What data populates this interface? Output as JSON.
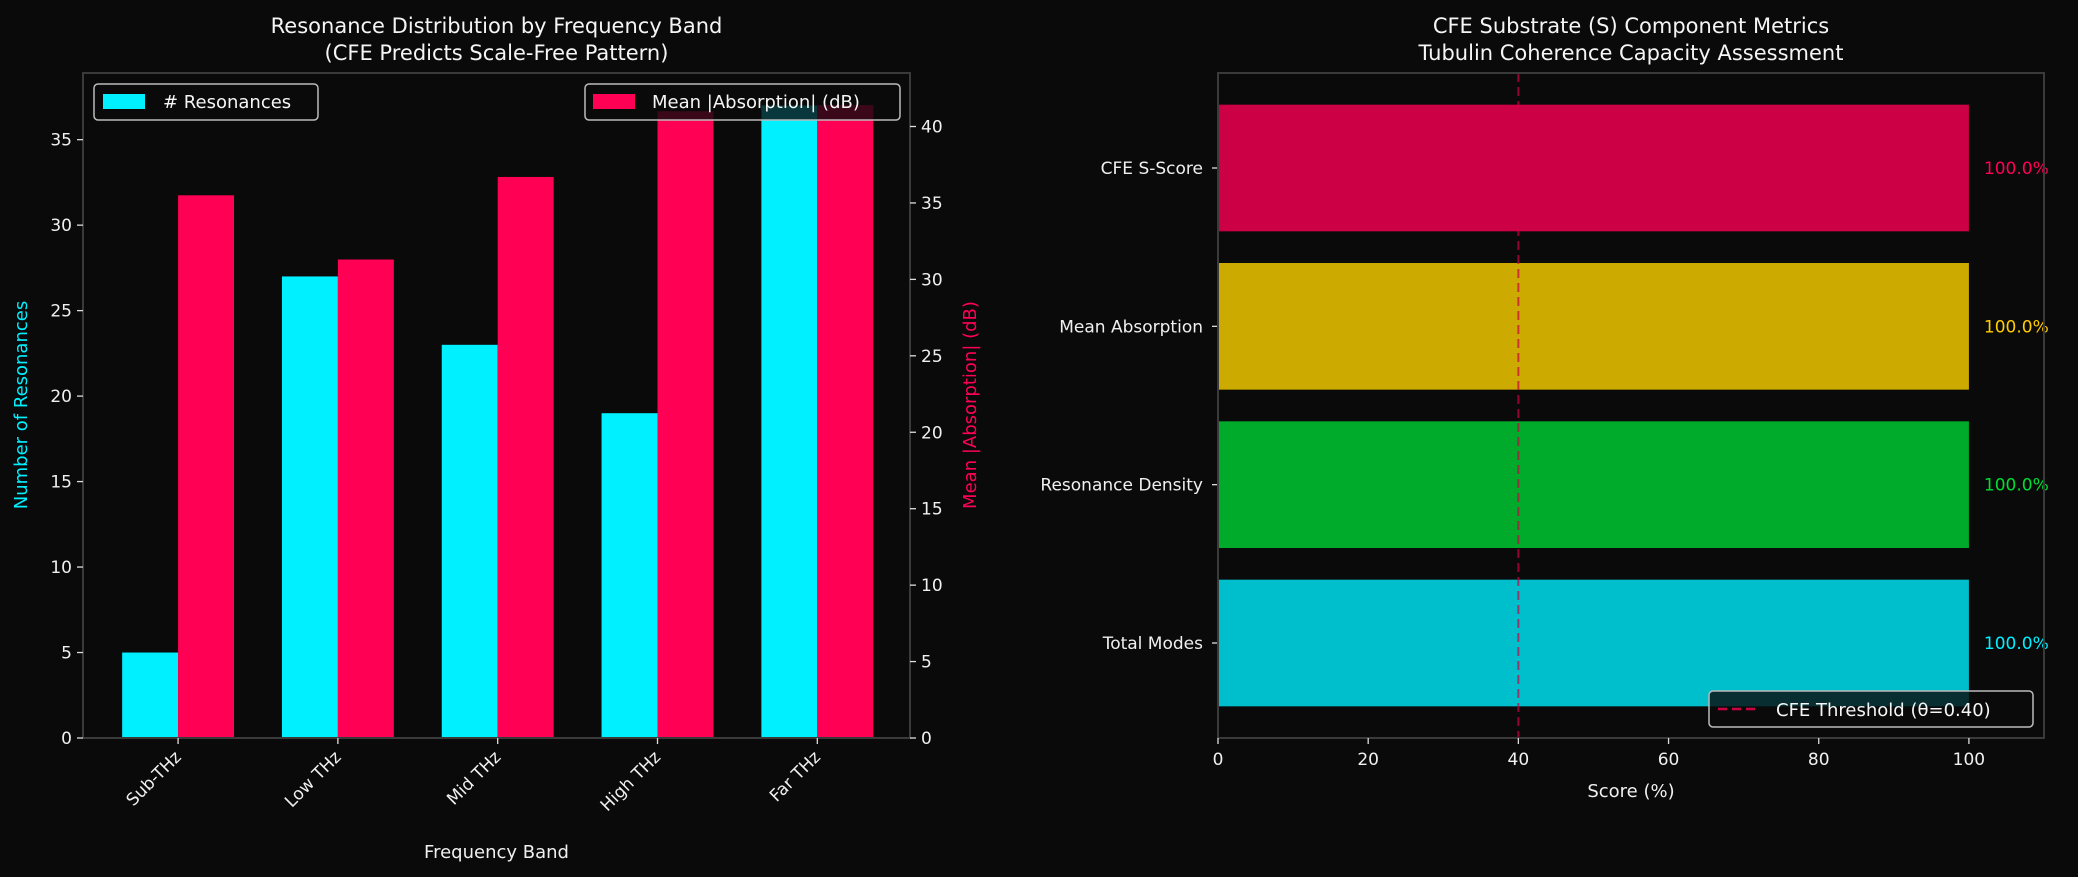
{
  "background": "#0a0a0a",
  "chart_data": [
    {
      "type": "bar",
      "title": "Resonance Distribution by Frequency Band",
      "subtitle": "(CFE Predicts Scale-Free Pattern)",
      "xlabel": "Frequency Band",
      "ylabel": "Number of Resonances",
      "y2label": "Mean |Absorption| (dB)",
      "categories": [
        "Sub-THz",
        "Low THz",
        "Mid THz",
        "High THz",
        "Far THz"
      ],
      "series": [
        {
          "name": "# Resonances",
          "axis": "left",
          "values": [
            5,
            27,
            23,
            19,
            37
          ],
          "color": "#00f0ff"
        },
        {
          "name": "Mean |Absorption| (dB)",
          "axis": "right",
          "values": [
            35.5,
            31.3,
            36.7,
            41.0,
            41.4
          ],
          "color": "#ff0055"
        }
      ],
      "ylim": [
        0,
        38.9
      ],
      "y2lim": [
        0,
        43.5
      ],
      "yticks": [
        0,
        5,
        10,
        15,
        20,
        25,
        30,
        35
      ],
      "y2ticks": [
        0,
        5,
        10,
        15,
        20,
        25,
        30,
        35,
        40
      ],
      "ylabel_color": "#00f0ff",
      "y2label_color": "#ff0055",
      "legend": [
        "upper-left",
        "upper-right"
      ],
      "grid": false
    },
    {
      "type": "bar",
      "orientation": "horizontal",
      "title": "CFE Substrate (S) Component Metrics",
      "subtitle": "Tubulin Coherence Capacity Assessment",
      "xlabel": "Score (%)",
      "categories": [
        "Total Modes",
        "Resonance Density",
        "Mean Absorption",
        "CFE S-Score"
      ],
      "values": [
        100,
        100,
        100,
        100
      ],
      "value_labels": [
        "100.0%",
        "100.0%",
        "100.0%",
        "100.0%"
      ],
      "colors": [
        "#00bfcc",
        "#00aa2a",
        "#ccaa00",
        "#cc0044"
      ],
      "label_colors": [
        "#00f0ff",
        "#00dd33",
        "#ffcc00",
        "#ff0055"
      ],
      "xlim": [
        0,
        110
      ],
      "xticks": [
        0,
        20,
        40,
        60,
        80,
        100
      ],
      "threshold": {
        "value": 40,
        "label": "CFE Threshold (θ=0.40)",
        "color": "#cc0044"
      },
      "legend": "lower-right",
      "grid": false
    }
  ]
}
